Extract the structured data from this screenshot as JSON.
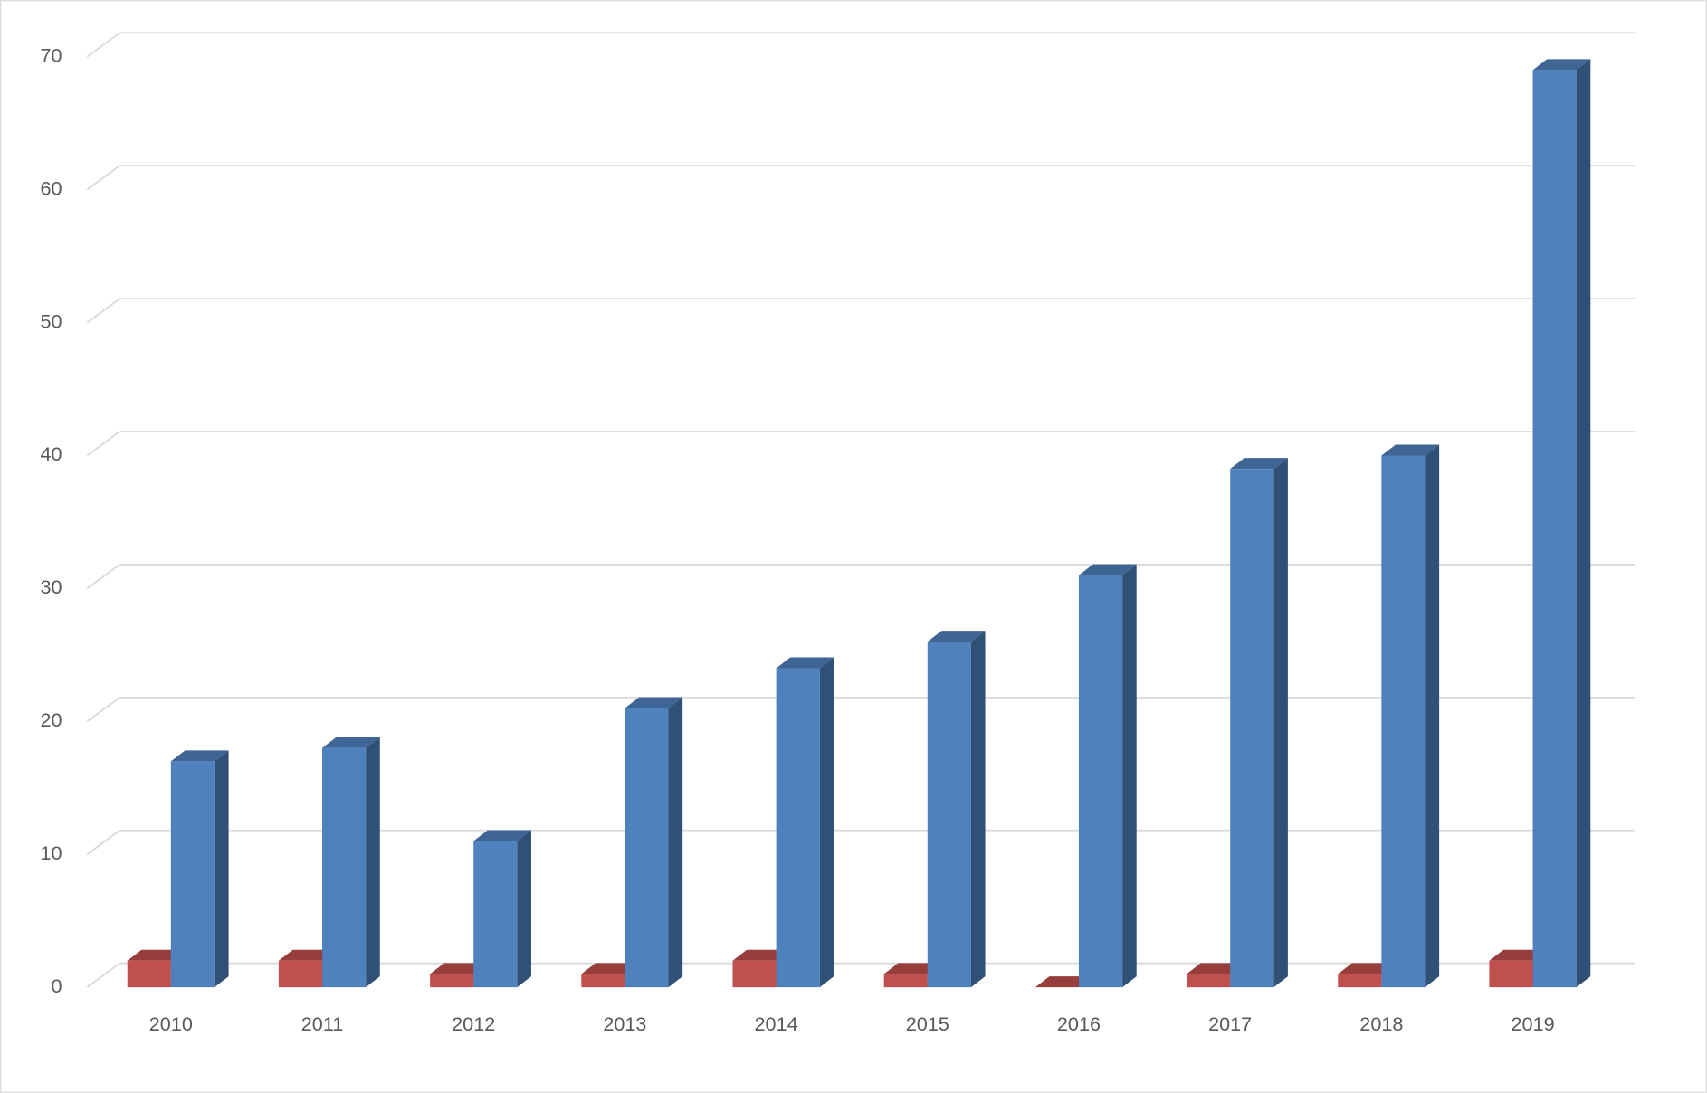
{
  "chart_data": {
    "type": "bar3d",
    "categories": [
      "2010",
      "2011",
      "2012",
      "2013",
      "2014",
      "2015",
      "2016",
      "2017",
      "2018",
      "2019"
    ],
    "series": [
      {
        "color": "#c0504d",
        "values": [
          2,
          2,
          1,
          1,
          2,
          1,
          0,
          1,
          1,
          2
        ]
      },
      {
        "color": "#4f81bd",
        "values": [
          17,
          18,
          11,
          21,
          24,
          26,
          31,
          39,
          40,
          69
        ]
      }
    ],
    "ylim": [
      0,
      70
    ],
    "yticks": [
      0,
      10,
      20,
      30,
      40,
      50,
      60,
      70
    ],
    "grid": true
  }
}
